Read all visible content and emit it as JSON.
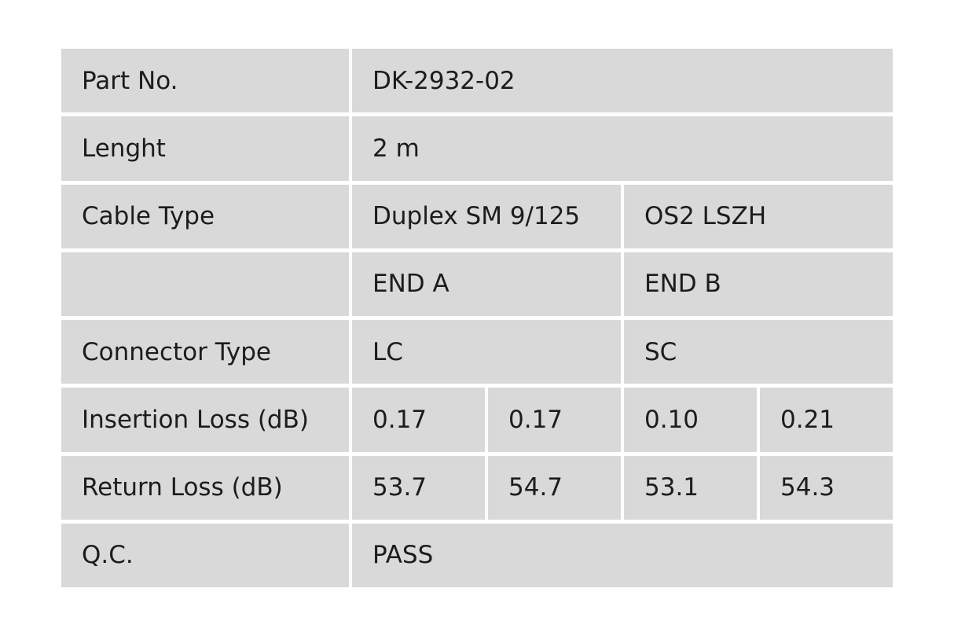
{
  "table": {
    "rows": [
      [
        "Part No.",
        "DK-2932-02"
      ],
      [
        "Lenght",
        "2 m"
      ],
      [
        "Cable Type",
        "Duplex SM 9/125",
        "OS2 LSZH"
      ],
      [
        null,
        "END A",
        "END B"
      ],
      [
        "Connector Type",
        "LC",
        "SC"
      ],
      [
        "Insertion Loss (dB)",
        "0.17",
        "0.17",
        "0.10",
        "0.21"
      ],
      [
        "Return Loss (dB)",
        "53.7",
        "54.7",
        "53.1",
        "54.3"
      ],
      [
        "Q.C.",
        "PASS"
      ]
    ]
  }
}
